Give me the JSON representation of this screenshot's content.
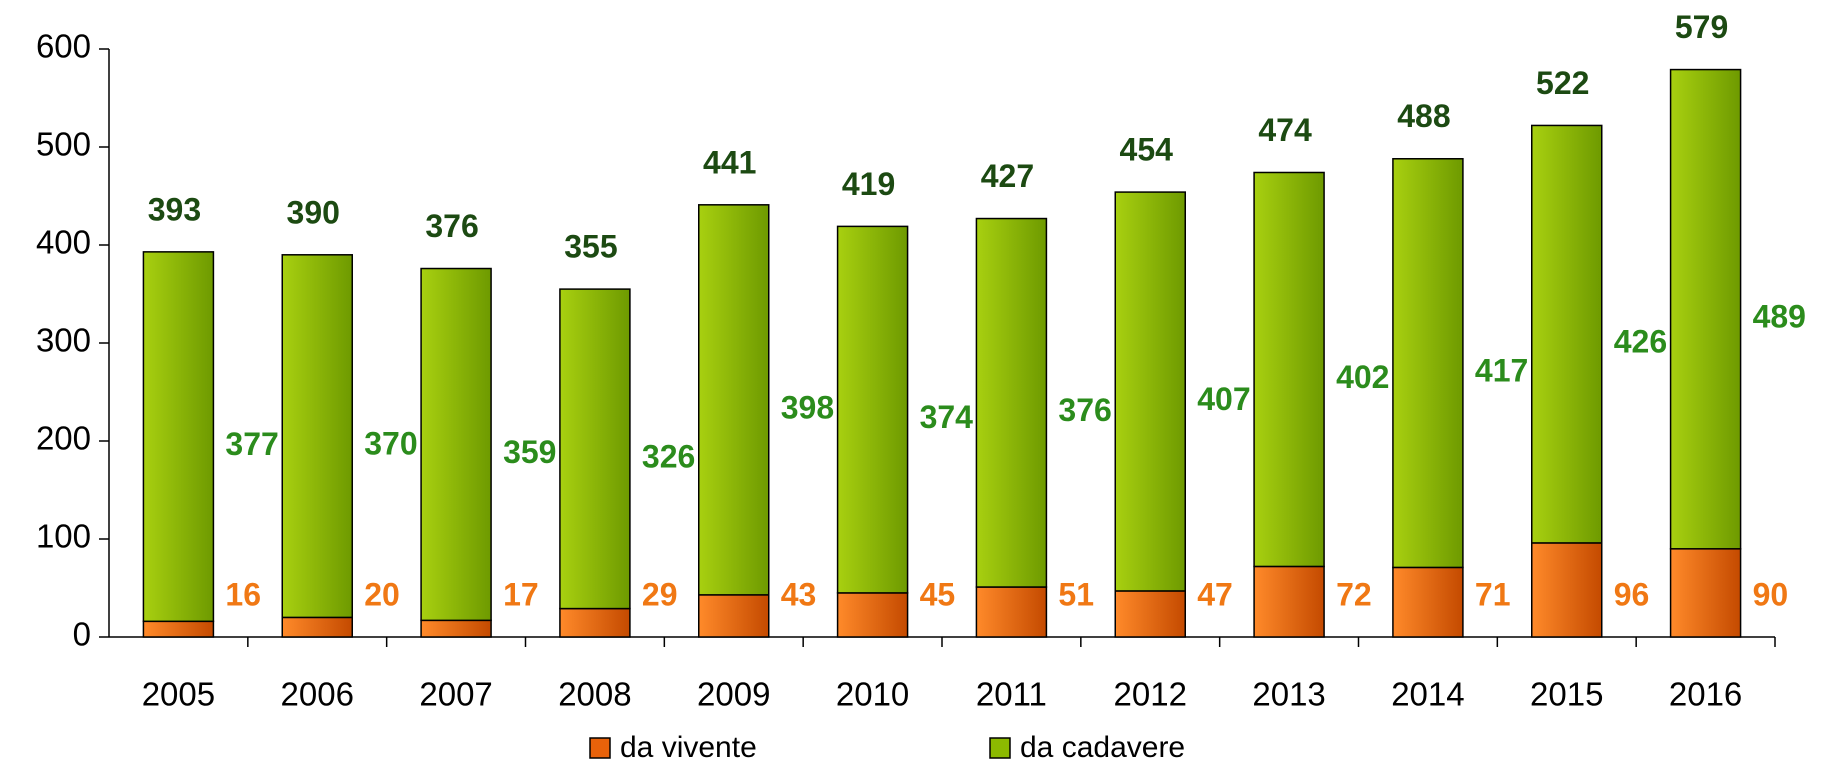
{
  "chart_data": {
    "type": "stacked_bar",
    "categories": [
      "2005",
      "2006",
      "2007",
      "2008",
      "2009",
      "2010",
      "2011",
      "2012",
      "2013",
      "2014",
      "2015",
      "2016"
    ],
    "series": [
      {
        "name": "da vivente",
        "color": "#e8620a",
        "label_color": "#f07814",
        "values": [
          16,
          20,
          17,
          29,
          43,
          45,
          51,
          47,
          72,
          71,
          96,
          90
        ]
      },
      {
        "name": "da cadavere",
        "color": "#8cba00",
        "label_color": "#2b8c1c",
        "values": [
          377,
          370,
          359,
          326,
          398,
          374,
          376,
          407,
          402,
          417,
          426,
          489
        ]
      }
    ],
    "total_labels": [
      393,
      390,
      376,
      355,
      441,
      419,
      427,
      454,
      474,
      488,
      522,
      579
    ],
    "total_color": "#1c4a12",
    "ylim": [
      0,
      600
    ],
    "yticks": [
      0,
      100,
      200,
      300,
      400,
      500,
      600
    ],
    "legend": "bottom"
  }
}
